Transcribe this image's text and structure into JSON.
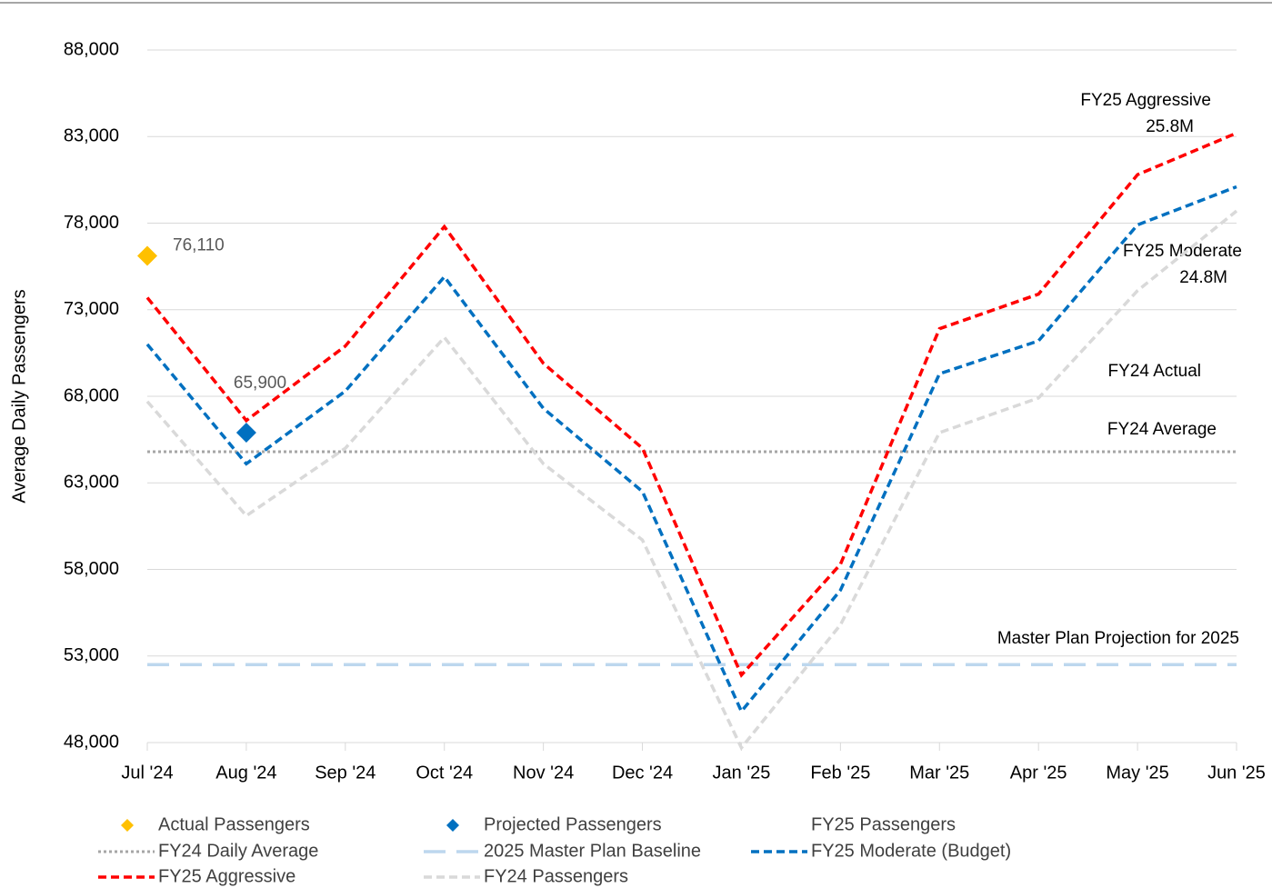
{
  "chart_data": {
    "type": "line",
    "y_label": "Average Daily Passengers",
    "categories": [
      "Jul '24",
      "Aug '24",
      "Sep '24",
      "Oct '24",
      "Nov '24",
      "Dec '24",
      "Jan '25",
      "Feb '25",
      "Mar '25",
      "Apr '25",
      "May '25",
      "Jun '25"
    ],
    "ylim": [
      48000,
      88000
    ],
    "yticks": [
      {
        "value": 48000,
        "label": "48,000"
      },
      {
        "value": 53000,
        "label": "53,000"
      },
      {
        "value": 58000,
        "label": "58,000"
      },
      {
        "value": 63000,
        "label": "63,000"
      },
      {
        "value": 68000,
        "label": "68,000"
      },
      {
        "value": 73000,
        "label": "73,000"
      },
      {
        "value": 78000,
        "label": "78,000"
      },
      {
        "value": 83000,
        "label": "83,000"
      },
      {
        "value": 88000,
        "label": "88,000"
      }
    ],
    "grid": true,
    "series": [
      {
        "name": "Actual Passengers",
        "color": "#ffc000",
        "style": "marker",
        "values": [
          76110,
          null,
          null,
          null,
          null,
          null,
          null,
          null,
          null,
          null,
          null,
          null
        ],
        "value_labels": [
          "76,110",
          null,
          null,
          null,
          null,
          null,
          null,
          null,
          null,
          null,
          null,
          null
        ]
      },
      {
        "name": "Projected Passengers",
        "color": "#0070c0",
        "style": "marker",
        "values": [
          null,
          65900,
          null,
          null,
          null,
          null,
          null,
          null,
          null,
          null,
          null,
          null
        ],
        "value_labels": [
          null,
          "65,900",
          null,
          null,
          null,
          null,
          null,
          null,
          null,
          null,
          null,
          null
        ]
      },
      {
        "name": "FY25 Passengers",
        "color": null,
        "style": "none",
        "values": [
          null,
          null,
          null,
          null,
          null,
          null,
          null,
          null,
          null,
          null,
          null,
          null
        ]
      },
      {
        "name": "FY24 Daily Average",
        "color": "#a6a6a6",
        "style": "dotted",
        "values": [
          64800,
          64800,
          64800,
          64800,
          64800,
          64800,
          64800,
          64800,
          64800,
          64800,
          64800,
          64800
        ]
      },
      {
        "name": "2025 Master Plan Baseline",
        "color": "#bdd7ee",
        "style": "longdash",
        "values": [
          52500,
          52500,
          52500,
          52500,
          52500,
          52500,
          52500,
          52500,
          52500,
          52500,
          52500,
          52500
        ]
      },
      {
        "name": "FY25 Moderate (Budget)",
        "color": "#0070c0",
        "style": "dashed",
        "values": [
          71000,
          64100,
          68300,
          74900,
          67300,
          62500,
          49800,
          56800,
          69300,
          71200,
          77900,
          80100
        ]
      },
      {
        "name": "FY25 Aggressive",
        "color": "#ff0000",
        "style": "dashed",
        "values": [
          73700,
          66600,
          70900,
          77800,
          69900,
          65000,
          51900,
          58300,
          71900,
          73900,
          80800,
          83200
        ]
      },
      {
        "name": "FY24 Passengers",
        "color": "#d9d9d9",
        "style": "dashed",
        "values": [
          67700,
          61100,
          65000,
          71400,
          64100,
          59700,
          47700,
          54800,
          65900,
          67900,
          74100,
          78700
        ]
      }
    ],
    "annotations": [
      "FY25 Aggressive",
      "25.8M",
      "FY25 Moderate",
      "24.8M",
      "FY24 Actual",
      "FY24 Average",
      "Master Plan Projection for 2025"
    ]
  }
}
